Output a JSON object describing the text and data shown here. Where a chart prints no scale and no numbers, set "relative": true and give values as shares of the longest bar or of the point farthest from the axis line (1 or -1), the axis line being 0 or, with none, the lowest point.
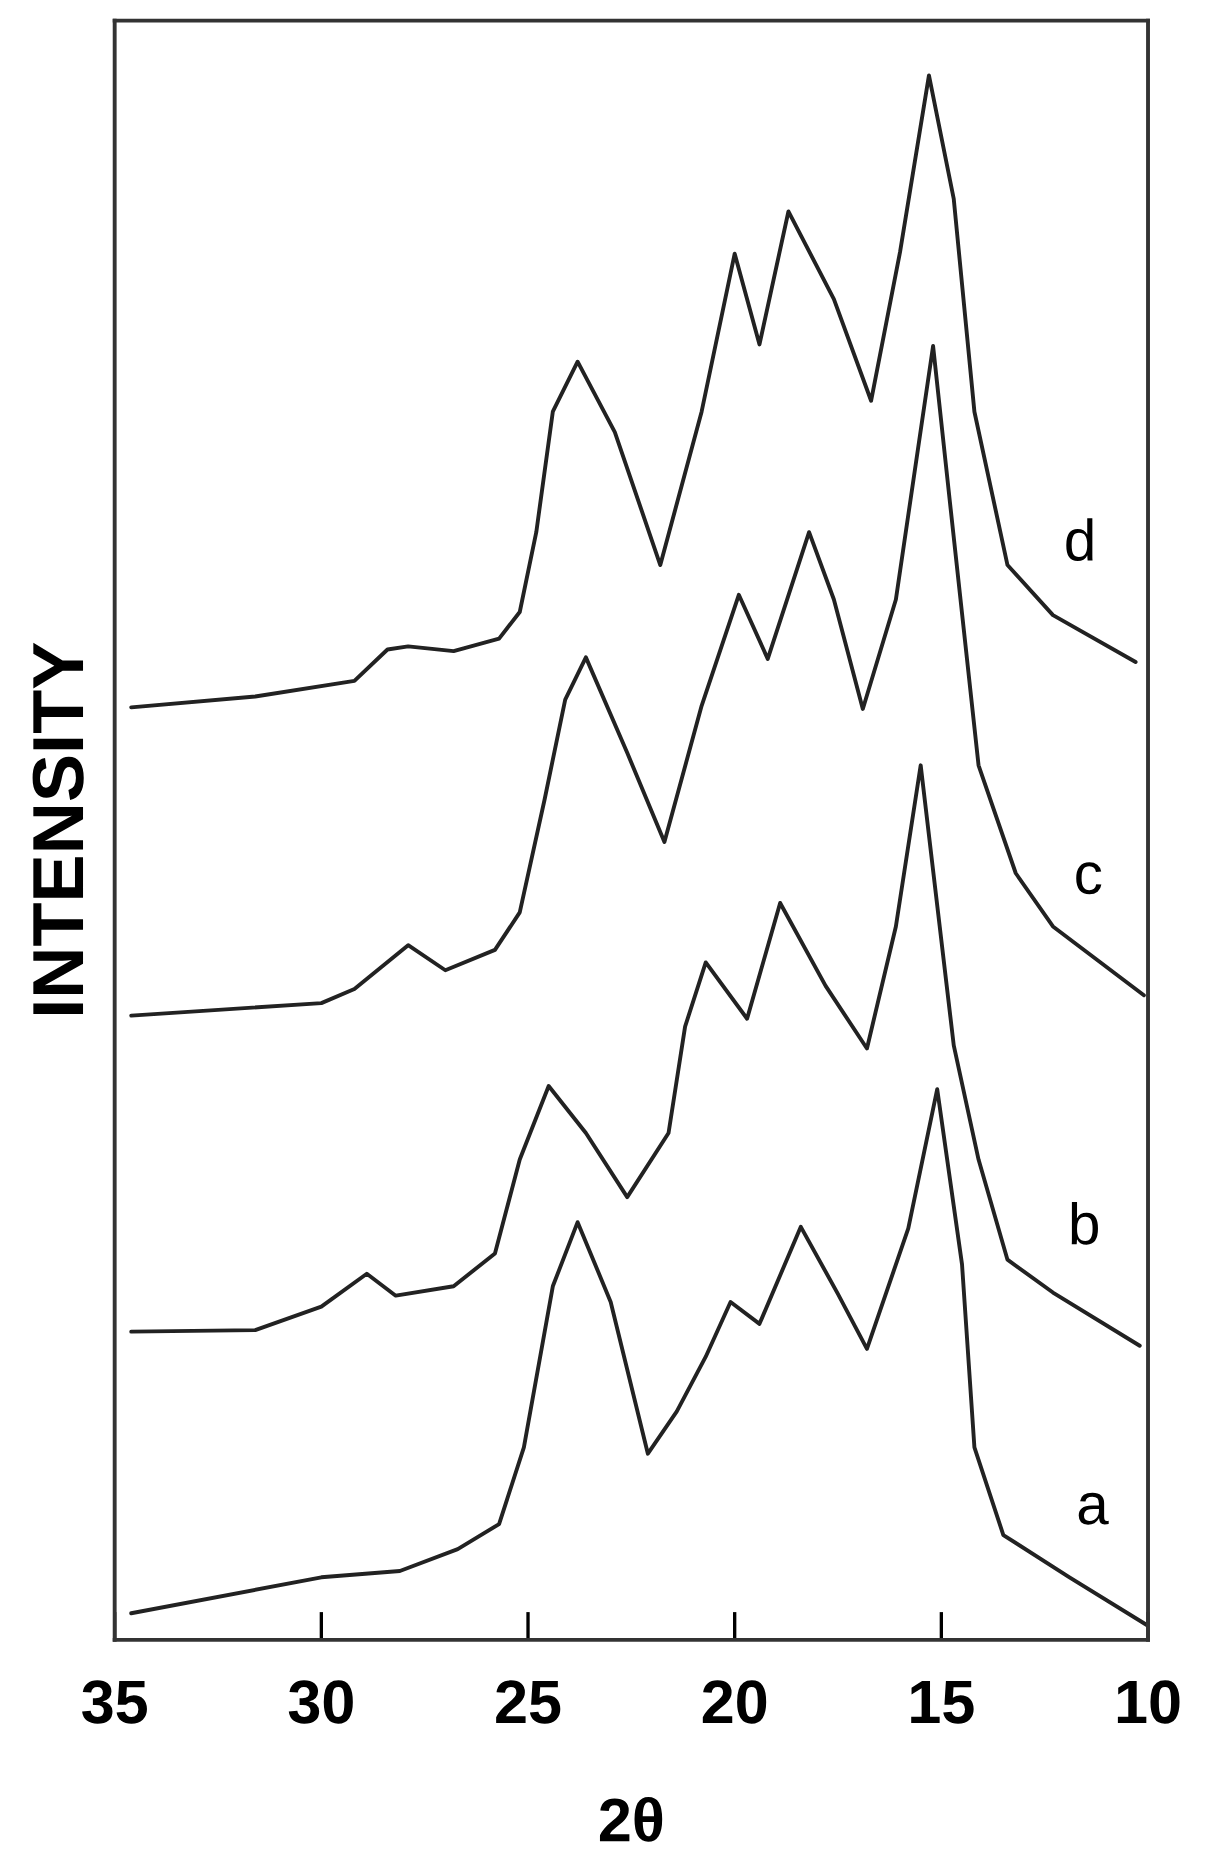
{
  "chart_data": {
    "type": "line",
    "xlabel": "2θ",
    "ylabel": "INTENSITY",
    "relative": true,
    "tick_labels": "x",
    "xlim": [
      35,
      10
    ],
    "xticks": [
      35,
      30,
      25,
      20,
      15,
      10
    ],
    "series": [
      {
        "name": "a",
        "color": "#222222",
        "x": [
          34.6,
          30.0,
          28.1,
          26.7,
          25.7,
          25.1,
          24.4,
          23.8,
          23.0,
          22.1,
          21.4,
          20.7,
          20.1,
          19.4,
          18.4,
          17.5,
          16.8,
          15.8,
          15.1,
          14.5,
          14.2,
          13.5,
          11.9,
          10.0
        ],
        "values": [
          0.017,
          0.04,
          0.044,
          0.058,
          0.074,
          0.123,
          0.226,
          0.267,
          0.216,
          0.119,
          0.146,
          0.181,
          0.216,
          0.202,
          0.264,
          0.221,
          0.186,
          0.263,
          0.352,
          0.24,
          0.123,
          0.067,
          0.04,
          0.009
        ]
      },
      {
        "name": "b",
        "color": "#222222",
        "x": [
          34.6,
          31.6,
          30.0,
          28.9,
          28.2,
          26.8,
          25.8,
          25.2,
          24.5,
          23.6,
          22.6,
          21.6,
          21.2,
          20.7,
          19.7,
          18.9,
          17.8,
          16.8,
          16.1,
          15.5,
          14.7,
          14.1,
          13.4,
          12.3,
          10.2
        ],
        "values": [
          0.197,
          0.198,
          0.213,
          0.234,
          0.22,
          0.226,
          0.247,
          0.307,
          0.354,
          0.324,
          0.283,
          0.324,
          0.392,
          0.433,
          0.397,
          0.471,
          0.418,
          0.378,
          0.456,
          0.559,
          0.38,
          0.307,
          0.243,
          0.222,
          0.188
        ]
      },
      {
        "name": "c",
        "color": "#222222",
        "x": [
          34.6,
          30.0,
          29.2,
          27.9,
          27.0,
          25.8,
          25.2,
          24.6,
          24.1,
          23.6,
          22.6,
          21.7,
          20.8,
          19.9,
          19.2,
          18.2,
          17.6,
          16.9,
          16.1,
          15.2,
          14.8,
          14.1,
          13.2,
          12.3,
          10.1
        ],
        "values": [
          0.399,
          0.407,
          0.416,
          0.444,
          0.428,
          0.441,
          0.465,
          0.537,
          0.601,
          0.628,
          0.567,
          0.51,
          0.597,
          0.668,
          0.627,
          0.708,
          0.665,
          0.595,
          0.665,
          0.827,
          0.729,
          0.559,
          0.49,
          0.456,
          0.412
        ]
      },
      {
        "name": "d",
        "color": "#222222",
        "x": [
          34.6,
          31.6,
          29.2,
          28.4,
          27.9,
          26.8,
          25.7,
          25.2,
          24.8,
          24.4,
          23.8,
          22.9,
          21.8,
          20.8,
          20.0,
          19.4,
          18.7,
          17.6,
          16.7,
          16.0,
          15.3,
          14.7,
          14.2,
          13.4,
          12.3,
          10.3
        ],
        "values": [
          0.596,
          0.603,
          0.613,
          0.633,
          0.635,
          0.632,
          0.64,
          0.657,
          0.708,
          0.785,
          0.817,
          0.772,
          0.687,
          0.785,
          0.886,
          0.828,
          0.913,
          0.857,
          0.792,
          0.887,
          1.0,
          0.921,
          0.785,
          0.687,
          0.655,
          0.625
        ]
      }
    ]
  }
}
